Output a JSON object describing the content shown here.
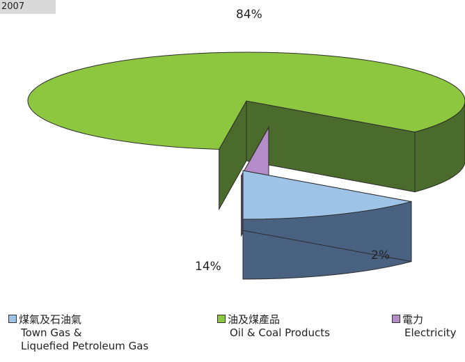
{
  "header_tag": "2007",
  "chart_data": {
    "type": "pie",
    "title": "",
    "slices": [
      {
        "zh": "煤氣及石油氣",
        "en_line1": "Town Gas &",
        "en_line2": "Liquefied Petroleum Gas",
        "value": 14,
        "label": "14%",
        "color": "#9dc3e6",
        "side_color": "#4a6282"
      },
      {
        "zh": "油及煤產品",
        "en_line1": "Oil & Coal Products",
        "en_line2": "",
        "value": 84,
        "label": "84%",
        "color": "#8dc63f",
        "side_color": "#4a6b2b"
      },
      {
        "zh": "電力",
        "en_line1": "Electricity",
        "en_line2": "",
        "value": 2,
        "label": "2%",
        "color": "#b48cc8",
        "side_color": "#5e3f73"
      }
    ],
    "legend_position": "bottom"
  }
}
